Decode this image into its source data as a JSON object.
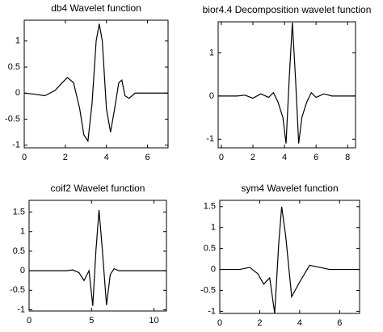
{
  "chart_data": [
    {
      "type": "line",
      "title": "db4 Wavelet function",
      "color": "#000000",
      "x": [
        0,
        0.5,
        1,
        1.5,
        1.8,
        2.1,
        2.4,
        2.7,
        2.9,
        3.1,
        3.3,
        3.5,
        3.65,
        3.8,
        4,
        4.2,
        4.4,
        4.6,
        4.75,
        4.9,
        5.1,
        5.4,
        6,
        7
      ],
      "values": [
        0,
        -0.02,
        -0.05,
        0.05,
        0.18,
        0.3,
        0.2,
        -0.3,
        -0.8,
        -0.92,
        -0.2,
        1.0,
        1.33,
        1.0,
        -0.3,
        -0.75,
        -0.3,
        0.2,
        0.25,
        -0.05,
        -0.1,
        0,
        0,
        0
      ],
      "xlim": [
        0,
        7
      ],
      "xticks": [
        0,
        2,
        4,
        6
      ],
      "ylim": [
        -1.05,
        1.4
      ],
      "yticks": [
        -1,
        -0.5,
        0,
        0.5,
        1
      ]
    },
    {
      "type": "line",
      "title": "bior4.4 Decomposition wavelet function",
      "color": "#000000",
      "x": [
        -0.2,
        0,
        1,
        1.5,
        2,
        2.5,
        3,
        3.3,
        3.6,
        3.9,
        4.1,
        4.3,
        4.5,
        4.7,
        4.9,
        5.1,
        5.4,
        5.7,
        6,
        6.5,
        7,
        8,
        8.5
      ],
      "values": [
        0,
        0,
        0,
        0.02,
        -0.05,
        0.05,
        -0.03,
        0.08,
        -0.15,
        -0.5,
        -1.1,
        0.4,
        1.7,
        0.4,
        -1.1,
        -0.5,
        -0.15,
        0.08,
        -0.03,
        0.05,
        0,
        0,
        0
      ],
      "xlim": [
        -0.2,
        8.5
      ],
      "xticks": [
        0,
        2,
        4,
        6,
        8
      ],
      "ylim": [
        -1.2,
        1.72
      ],
      "yticks": [
        -1,
        0,
        1
      ]
    },
    {
      "type": "line",
      "title": "coif2 Wavelet function",
      "color": "#000000",
      "x": [
        0,
        2,
        3,
        3.5,
        4,
        4.4,
        4.8,
        5.1,
        5.35,
        5.6,
        5.85,
        6.2,
        6.5,
        6.8,
        7.2,
        8,
        9,
        11
      ],
      "values": [
        0,
        0,
        0,
        0.02,
        -0.05,
        -0.25,
        0,
        -0.9,
        0.5,
        1.55,
        0.6,
        -0.88,
        -0.1,
        0.05,
        0,
        0,
        0,
        0
      ],
      "xlim": [
        0,
        11
      ],
      "xticks": [
        0,
        5,
        10
      ],
      "ylim": [
        -1.03,
        1.8
      ],
      "yticks": [
        -1,
        -0.5,
        0,
        0.5,
        1,
        1.5
      ]
    },
    {
      "type": "line",
      "title": "sym4 Wavelet function",
      "color": "#000000",
      "x": [
        0,
        1,
        1.5,
        1.9,
        2.2,
        2.5,
        2.75,
        2.95,
        3.1,
        3.3,
        3.6,
        4,
        4.5,
        5,
        5.5,
        6,
        7
      ],
      "values": [
        0,
        0,
        0.05,
        -0.1,
        -0.35,
        -0.2,
        -1.05,
        0.6,
        1.5,
        0.8,
        -0.65,
        -0.3,
        0.1,
        0.05,
        0,
        0,
        0
      ],
      "xlim": [
        0,
        7
      ],
      "xticks": [
        0,
        2,
        4,
        6
      ],
      "ylim": [
        -1.05,
        1.65
      ],
      "yticks": [
        -1,
        -0.5,
        0,
        0.5,
        1,
        1.5
      ]
    }
  ]
}
